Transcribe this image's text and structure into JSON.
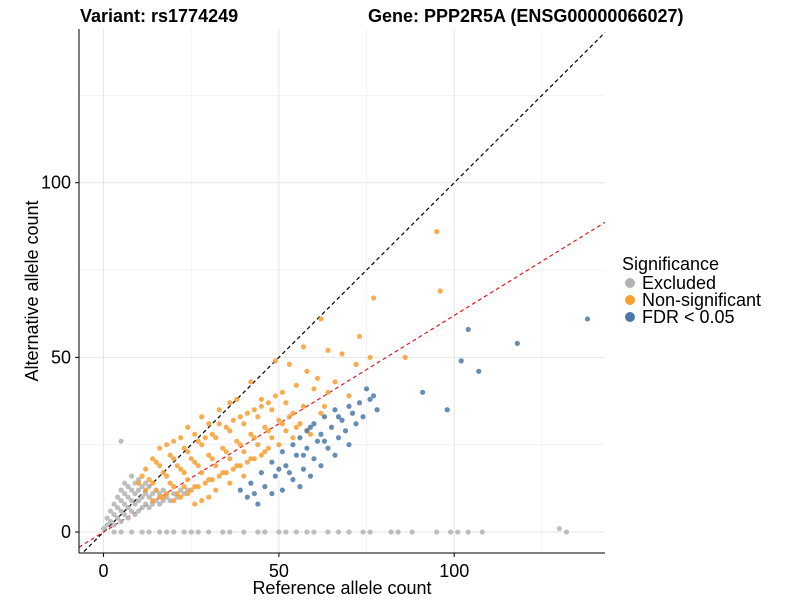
{
  "header": {
    "variant": "Variant: rs1774249",
    "gene": "Gene: PPP2R5A (ENSG00000066027)"
  },
  "chart_data": {
    "type": "scatter",
    "xlabel": "Reference allele count",
    "ylabel": "Alternative allele count",
    "xlim": [
      -7,
      143
    ],
    "ylim": [
      -6,
      144
    ],
    "x_ticks": [
      0,
      50,
      100
    ],
    "y_ticks": [
      0,
      50,
      100
    ],
    "grid": true,
    "legend": {
      "title": "Significance",
      "position": "right",
      "entries": [
        {
          "label": "Excluded",
          "color": "#b3b3b3"
        },
        {
          "label": "Non-significant",
          "color": "#f7a031"
        },
        {
          "label": "FDR < 0.05",
          "color": "#4e79a7"
        }
      ]
    },
    "reference_lines": [
      {
        "slope": 1,
        "intercept": 0,
        "color": "#000000",
        "style": "dashed"
      },
      {
        "slope": 0.62,
        "intercept": 0,
        "color": "#e41a1c",
        "style": "dashed"
      }
    ],
    "series": [
      {
        "name": "Excluded",
        "color": "#b3b3b3",
        "points": [
          [
            5,
            26
          ],
          [
            0,
            1
          ],
          [
            1,
            2
          ],
          [
            1,
            4
          ],
          [
            2,
            3
          ],
          [
            2,
            6
          ],
          [
            3,
            2
          ],
          [
            3,
            5
          ],
          [
            3,
            8
          ],
          [
            4,
            4
          ],
          [
            4,
            7
          ],
          [
            4,
            10
          ],
          [
            5,
            3
          ],
          [
            5,
            6
          ],
          [
            5,
            9
          ],
          [
            5,
            12
          ],
          [
            6,
            5
          ],
          [
            6,
            8
          ],
          [
            6,
            11
          ],
          [
            6,
            14
          ],
          [
            7,
            4
          ],
          [
            7,
            7
          ],
          [
            7,
            10
          ],
          [
            7,
            13
          ],
          [
            8,
            6
          ],
          [
            8,
            9
          ],
          [
            8,
            12
          ],
          [
            8,
            16
          ],
          [
            9,
            5
          ],
          [
            9,
            8
          ],
          [
            9,
            11
          ],
          [
            9,
            14
          ],
          [
            10,
            6
          ],
          [
            10,
            9
          ],
          [
            10,
            12
          ],
          [
            10,
            15
          ],
          [
            11,
            7
          ],
          [
            11,
            10
          ],
          [
            11,
            13
          ],
          [
            12,
            8
          ],
          [
            12,
            11
          ],
          [
            12,
            14
          ],
          [
            13,
            7
          ],
          [
            13,
            10
          ],
          [
            13,
            13
          ],
          [
            14,
            8
          ],
          [
            14,
            11
          ],
          [
            15,
            9
          ],
          [
            15,
            12
          ],
          [
            16,
            8
          ],
          [
            16,
            11
          ],
          [
            17,
            9
          ],
          [
            17,
            12
          ],
          [
            18,
            10
          ],
          [
            19,
            9
          ],
          [
            20,
            11
          ],
          [
            21,
            10
          ],
          [
            22,
            12
          ],
          [
            23,
            11
          ],
          [
            24,
            12
          ],
          [
            3,
            0
          ],
          [
            5,
            0
          ],
          [
            8,
            0
          ],
          [
            11,
            0
          ],
          [
            13,
            0
          ],
          [
            16,
            0
          ],
          [
            18,
            0
          ],
          [
            20,
            0
          ],
          [
            23,
            0
          ],
          [
            25,
            0
          ],
          [
            27,
            0
          ],
          [
            30,
            0
          ],
          [
            34,
            0
          ],
          [
            36,
            0
          ],
          [
            40,
            0
          ],
          [
            44,
            0
          ],
          [
            46,
            0
          ],
          [
            50,
            0
          ],
          [
            52,
            0
          ],
          [
            55,
            0
          ],
          [
            58,
            0
          ],
          [
            60,
            0
          ],
          [
            64,
            0
          ],
          [
            67,
            0
          ],
          [
            70,
            0
          ],
          [
            74,
            0
          ],
          [
            76,
            0
          ],
          [
            82,
            0
          ],
          [
            84,
            0
          ],
          [
            88,
            0
          ],
          [
            95,
            0
          ],
          [
            99,
            0
          ],
          [
            101,
            0
          ],
          [
            104,
            0
          ],
          [
            108,
            0
          ],
          [
            130,
            1
          ],
          [
            132,
            0
          ]
        ]
      },
      {
        "name": "Non-significant",
        "color": "#f7a031",
        "points": [
          [
            95,
            86
          ],
          [
            96,
            69
          ],
          [
            77,
            67
          ],
          [
            62,
            61
          ],
          [
            73,
            56
          ],
          [
            57,
            53
          ],
          [
            64,
            52
          ],
          [
            68,
            51
          ],
          [
            72,
            48
          ],
          [
            86,
            50
          ],
          [
            76,
            50
          ],
          [
            49,
            49
          ],
          [
            53,
            48
          ],
          [
            58,
            46
          ],
          [
            61,
            44
          ],
          [
            66,
            43
          ],
          [
            55,
            42
          ],
          [
            60,
            41
          ],
          [
            51,
            40
          ],
          [
            64,
            40
          ],
          [
            70,
            39
          ],
          [
            45,
            38
          ],
          [
            52,
            37
          ],
          [
            57,
            36
          ],
          [
            48,
            35
          ],
          [
            54,
            34
          ],
          [
            62,
            34
          ],
          [
            44,
            33
          ],
          [
            50,
            32
          ],
          [
            56,
            31
          ],
          [
            40,
            31
          ],
          [
            46,
            30
          ],
          [
            52,
            29
          ],
          [
            58,
            29
          ],
          [
            36,
            29
          ],
          [
            42,
            28
          ],
          [
            48,
            27
          ],
          [
            54,
            27
          ],
          [
            32,
            27
          ],
          [
            38,
            26
          ],
          [
            44,
            25
          ],
          [
            50,
            25
          ],
          [
            28,
            25
          ],
          [
            34,
            24
          ],
          [
            40,
            23
          ],
          [
            46,
            23
          ],
          [
            24,
            23
          ],
          [
            30,
            22
          ],
          [
            36,
            21
          ],
          [
            42,
            21
          ],
          [
            20,
            21
          ],
          [
            26,
            20
          ],
          [
            32,
            19
          ],
          [
            38,
            19
          ],
          [
            16,
            19
          ],
          [
            22,
            18
          ],
          [
            28,
            17
          ],
          [
            34,
            17
          ],
          [
            40,
            16
          ],
          [
            18,
            16
          ],
          [
            24,
            15
          ],
          [
            30,
            15
          ],
          [
            36,
            14
          ],
          [
            14,
            14
          ],
          [
            20,
            13
          ],
          [
            26,
            13
          ],
          [
            32,
            12
          ],
          [
            12,
            12
          ],
          [
            18,
            11
          ],
          [
            24,
            11
          ],
          [
            30,
            10
          ],
          [
            16,
            10
          ],
          [
            22,
            10
          ],
          [
            28,
            9
          ],
          [
            14,
            9
          ],
          [
            20,
            9
          ],
          [
            26,
            8
          ],
          [
            35,
            30
          ],
          [
            39,
            33
          ],
          [
            43,
            35
          ],
          [
            47,
            37
          ],
          [
            31,
            28
          ],
          [
            27,
            26
          ],
          [
            23,
            24
          ],
          [
            19,
            22
          ],
          [
            15,
            20
          ],
          [
            37,
            32
          ],
          [
            41,
            34
          ],
          [
            45,
            36
          ],
          [
            49,
            39
          ],
          [
            33,
            31
          ],
          [
            29,
            27
          ],
          [
            25,
            21
          ],
          [
            21,
            19
          ],
          [
            17,
            17
          ],
          [
            13,
            15
          ],
          [
            39,
            25
          ],
          [
            43,
            27
          ],
          [
            47,
            29
          ],
          [
            51,
            31
          ],
          [
            35,
            23
          ],
          [
            31,
            21
          ],
          [
            27,
            19
          ],
          [
            23,
            17
          ],
          [
            19,
            14
          ],
          [
            15,
            12
          ],
          [
            41,
            20
          ],
          [
            45,
            22
          ],
          [
            37,
            18
          ],
          [
            33,
            16
          ],
          [
            29,
            14
          ],
          [
            25,
            12
          ],
          [
            21,
            11
          ],
          [
            17,
            10
          ],
          [
            53,
            33
          ],
          [
            55,
            30
          ],
          [
            59,
            28
          ],
          [
            47,
            24
          ],
          [
            43,
            21
          ],
          [
            39,
            19
          ],
          [
            35,
            17
          ],
          [
            31,
            15
          ],
          [
            27,
            13
          ],
          [
            23,
            13
          ],
          [
            63,
            36
          ],
          [
            38,
            38
          ],
          [
            33,
            35
          ],
          [
            28,
            33
          ],
          [
            24,
            30
          ],
          [
            20,
            26
          ],
          [
            16,
            24
          ],
          [
            12,
            18
          ],
          [
            10,
            14
          ],
          [
            42,
            43
          ],
          [
            36,
            37
          ],
          [
            30,
            31
          ],
          [
            26,
            28
          ],
          [
            22,
            27
          ],
          [
            18,
            25
          ],
          [
            14,
            21
          ],
          [
            11,
            16
          ]
        ]
      },
      {
        "name": "FDR < 0.05",
        "color": "#4e79a7",
        "points": [
          [
            138,
            61
          ],
          [
            104,
            58
          ],
          [
            118,
            54
          ],
          [
            102,
            49
          ],
          [
            107,
            46
          ],
          [
            91,
            40
          ],
          [
            98,
            35
          ],
          [
            75,
            41
          ],
          [
            77,
            39
          ],
          [
            73,
            37
          ],
          [
            78,
            35
          ],
          [
            70,
            36
          ],
          [
            66,
            35
          ],
          [
            74,
            33
          ],
          [
            68,
            32
          ],
          [
            63,
            33
          ],
          [
            72,
            31
          ],
          [
            65,
            30
          ],
          [
            60,
            31
          ],
          [
            69,
            29
          ],
          [
            62,
            28
          ],
          [
            58,
            29
          ],
          [
            67,
            27
          ],
          [
            61,
            26
          ],
          [
            56,
            27
          ],
          [
            70,
            25
          ],
          [
            64,
            24
          ],
          [
            58,
            24
          ],
          [
            54,
            25
          ],
          [
            66,
            22
          ],
          [
            60,
            21
          ],
          [
            55,
            22
          ],
          [
            51,
            23
          ],
          [
            62,
            19
          ],
          [
            57,
            18
          ],
          [
            52,
            19
          ],
          [
            48,
            20
          ],
          [
            59,
            16
          ],
          [
            54,
            15
          ],
          [
            49,
            16
          ],
          [
            45,
            17
          ],
          [
            56,
            13
          ],
          [
            51,
            12
          ],
          [
            46,
            13
          ],
          [
            42,
            14
          ],
          [
            48,
            11
          ],
          [
            43,
            11
          ],
          [
            39,
            12
          ],
          [
            63,
            26
          ],
          [
            71,
            34
          ],
          [
            76,
            38
          ],
          [
            57,
            22
          ],
          [
            53,
            17
          ],
          [
            41,
            10
          ],
          [
            44,
            8
          ],
          [
            50,
            18
          ],
          [
            59,
            30
          ],
          [
            67,
            33
          ]
        ]
      }
    ]
  }
}
